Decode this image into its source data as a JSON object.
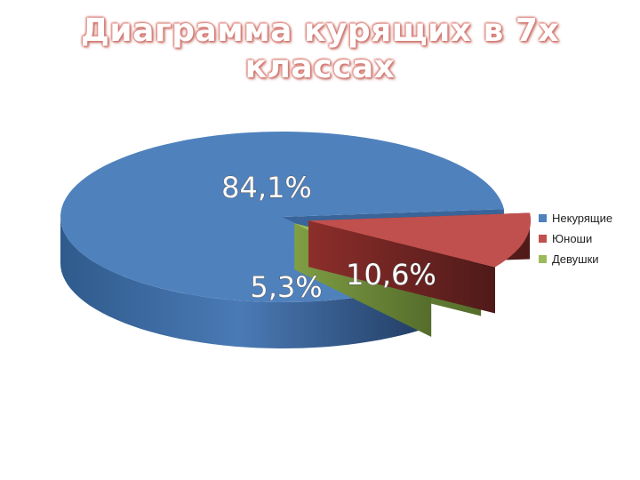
{
  "chart_data": {
    "type": "pie",
    "title": "Диаграмма курящих в 7х классах",
    "categories": [
      "Некурящие",
      "Юноши",
      "Девушки"
    ],
    "values": [
      84.1,
      10.6,
      5.3
    ],
    "data_labels": [
      "84,1%",
      "10,6%",
      "5,3%"
    ],
    "colors": [
      "#4f81bd",
      "#c0504d",
      "#9bbb59"
    ],
    "legend_position": "right",
    "style": "3d-exploded"
  }
}
